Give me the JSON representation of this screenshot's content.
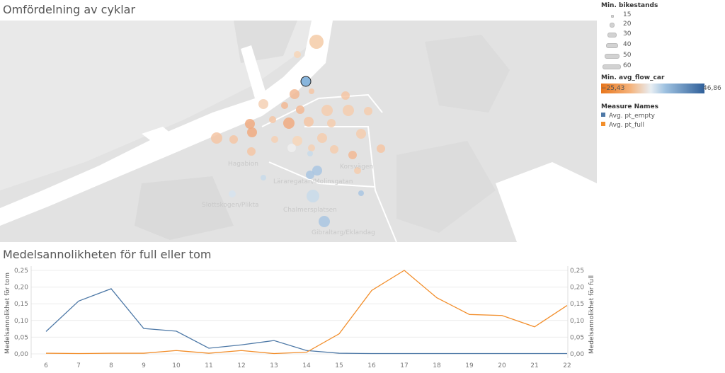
{
  "map": {
    "title": "Omfördelning av cyklar",
    "places": [
      "Hagabion",
      "Korsvägen",
      "Läraregatan/Molinsgatan",
      "Slottskogen/Plikta",
      "Chalmersplatsen",
      "Gibraltarg/Eklandag"
    ]
  },
  "legend": {
    "size_title": "Min. bikestands",
    "sizes": [
      "15",
      "20",
      "30",
      "40",
      "50",
      "60"
    ],
    "color_title": "Min. avg_flow_car",
    "color_min": "−25,43",
    "color_max": "46,86",
    "measure_title": "Measure Names",
    "measures": [
      {
        "label": "Avg. pt_empty",
        "color": "#4e79a7"
      },
      {
        "label": "Avg. pt_full",
        "color": "#f28e2b"
      }
    ]
  },
  "chart_data": {
    "type": "line",
    "title": "Medelsannolikheten för full eller tom",
    "x": [
      6,
      7,
      8,
      9,
      10,
      11,
      12,
      13,
      14,
      15,
      16,
      17,
      18,
      19,
      20,
      21,
      22
    ],
    "series": [
      {
        "name": "Avg. pt_empty",
        "color": "#4e79a7",
        "values": [
          0.067,
          0.158,
          0.195,
          0.076,
          0.068,
          0.017,
          0.027,
          0.04,
          0.01,
          0.002,
          0.001,
          0.001,
          0.001,
          0.001,
          0.001,
          0.001,
          0.001
        ]
      },
      {
        "name": "Avg. pt_full",
        "color": "#f28e2b",
        "values": [
          0.002,
          0.001,
          0.002,
          0.002,
          0.01,
          0.002,
          0.01,
          0.001,
          0.005,
          0.06,
          0.19,
          0.25,
          0.168,
          0.118,
          0.115,
          0.081,
          0.145
        ]
      }
    ],
    "y_ticks": [
      "0,00",
      "0,05",
      "0,10",
      "0,15",
      "0,20",
      "0,25"
    ],
    "ylim": [
      0,
      0.25
    ],
    "ylabel_left": "Medelsannolikhet för tom",
    "ylabel_right": "Medelsannolikhet för full",
    "grid": true
  }
}
